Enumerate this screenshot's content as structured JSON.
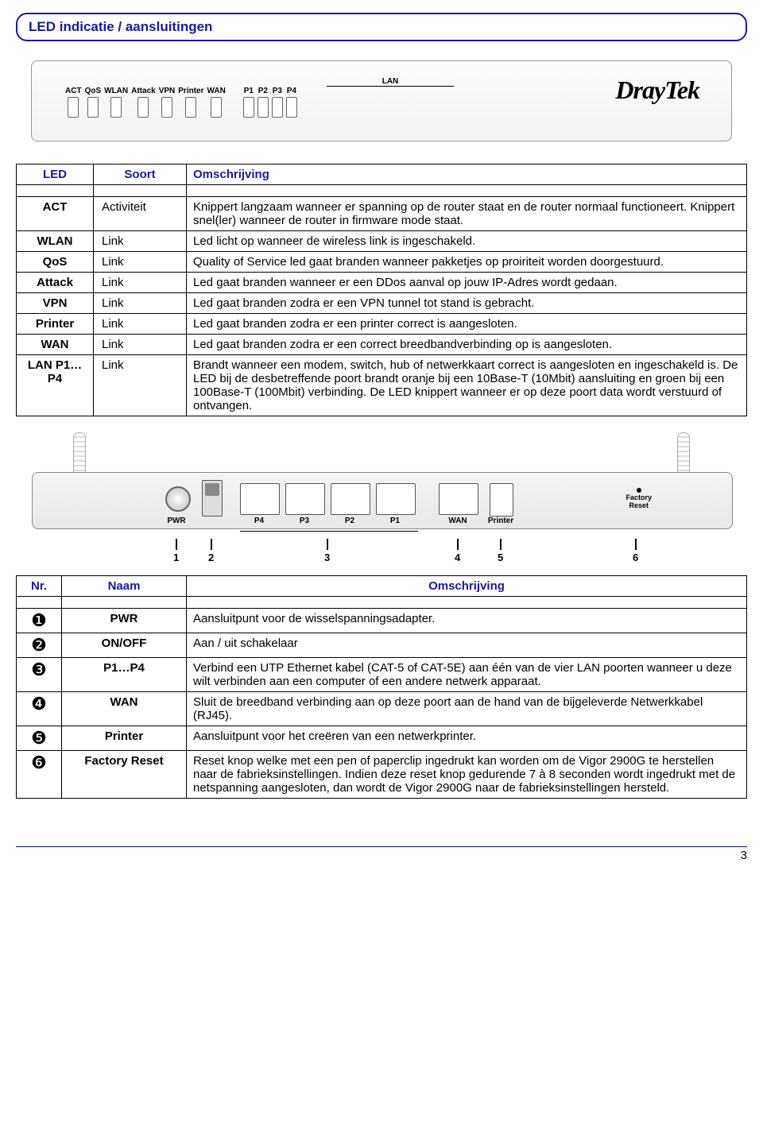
{
  "title": "LED indicatie / aansluitingen",
  "brand": "DrayTek",
  "front_leds": [
    "ACT",
    "QoS",
    "WLAN",
    "Attack",
    "VPN",
    "Printer",
    "WAN",
    "P1",
    "P2",
    "P3",
    "P4"
  ],
  "lan_group_label": "LAN",
  "table1": {
    "headers": [
      "LED",
      "Soort",
      "Omschrijving"
    ],
    "rows": [
      {
        "led": "ACT",
        "soort": "Activiteit",
        "desc": "Knippert langzaam wanneer er spanning op de router staat en de router normaal functioneert. Knippert snel(ler) wanneer de router in firmware mode staat."
      },
      {
        "led": "WLAN",
        "soort": "Link",
        "desc": "Led licht op wanneer de wireless link is ingeschakeld."
      },
      {
        "led": "QoS",
        "soort": "Link",
        "desc": "Quality of Service led gaat branden wanneer pakketjes op proiriteit worden doorgestuurd."
      },
      {
        "led": "Attack",
        "soort": "Link",
        "desc": "Led gaat branden wanneer er een DDos aanval op jouw IP-Adres wordt gedaan."
      },
      {
        "led": "VPN",
        "soort": "Link",
        "desc": "Led gaat branden zodra er een VPN tunnel tot stand is gebracht."
      },
      {
        "led": "Printer",
        "soort": "Link",
        "desc": "Led gaat branden zodra er een printer correct is aangesloten."
      },
      {
        "led": "WAN",
        "soort": "Link",
        "desc": "Led gaat branden zodra er een correct breedbandverbinding op is aangesloten."
      },
      {
        "led": "LAN P1…P4",
        "soort": "Link",
        "desc": "Brandt wanneer een modem, switch, hub of netwerkkaart correct is aangesloten en ingeschakeld is. De LED bij de desbetreffende poort brandt oranje bij een 10Base-T (10Mbit) aansluiting en groen bij een 100Base-T (100Mbit) verbinding. De LED knippert wanneer er op deze poort data wordt verstuurd of ontvangen."
      }
    ]
  },
  "rear": {
    "port_labels": {
      "pwr": "PWR",
      "p4": "P4",
      "p3": "P3",
      "p2": "P2",
      "p1": "P1",
      "wan": "WAN",
      "printer": "Printer",
      "reset": "Factory\nReset"
    },
    "numbers": [
      "1",
      "2",
      "3",
      "4",
      "5",
      "6"
    ]
  },
  "table2": {
    "headers": [
      "Nr.",
      "Naam",
      "Omschrijving"
    ],
    "rows": [
      {
        "sym": "❶",
        "naam": "PWR",
        "desc": "Aansluitpunt voor de wisselspanningsadapter."
      },
      {
        "sym": "❷",
        "naam": "ON/OFF",
        "desc": "Aan / uit schakelaar"
      },
      {
        "sym": "❸",
        "naam": "P1…P4",
        "desc": "Verbind een UTP Ethernet kabel (CAT-5 of CAT-5E) aan één van de vier LAN poorten wanneer u deze wilt verbinden aan een computer of een andere netwerk apparaat."
      },
      {
        "sym": "❹",
        "naam": "WAN",
        "desc": "Sluit de breedband verbinding aan op deze poort aan de hand van de bijgeleverde Netwerkkabel (RJ45)."
      },
      {
        "sym": "❺",
        "naam": "Printer",
        "desc": "Aansluitpunt voor het creëren van een netwerkprinter."
      },
      {
        "sym": "❻",
        "naam": "Factory Reset",
        "desc": "Reset knop welke met een pen of paperclip ingedrukt kan worden om de Vigor 2900G te herstellen naar de fabrieksinstellingen. Indien deze reset knop gedurende 7 à 8 seconden wordt ingedrukt met de netspanning aangesloten, dan wordt de Vigor 2900G naar de fabrieksinstellingen hersteld."
      }
    ]
  },
  "page_number": "3",
  "colors": {
    "accent": "#1a1a99",
    "border": "#000000",
    "panel": "#f2f2f2"
  }
}
